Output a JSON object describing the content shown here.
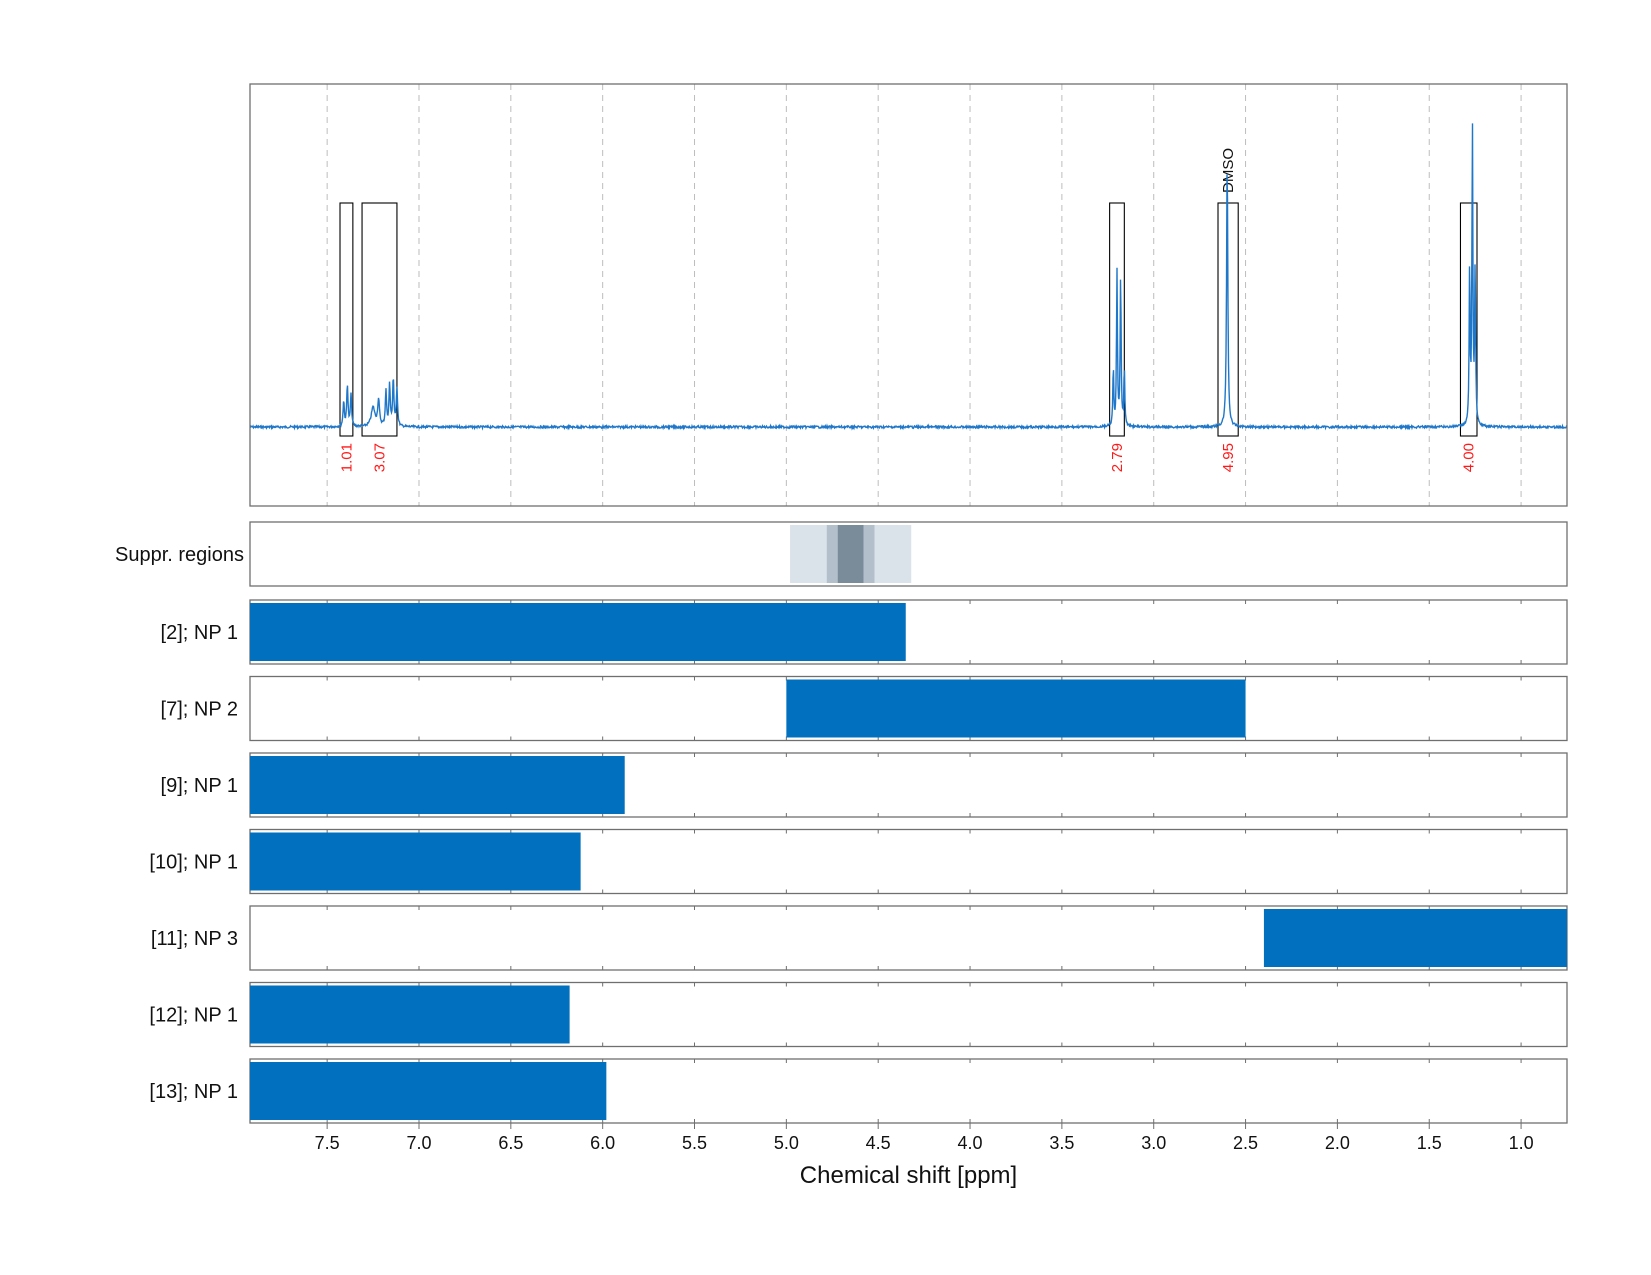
{
  "chart_data": {
    "type": "nmr-spectrum-with-range-bars",
    "xlabel": "Chemical shift [ppm]",
    "xlim": [
      7.92,
      0.75
    ],
    "x_ticks": [
      7.5,
      7.0,
      6.5,
      6.0,
      5.5,
      5.0,
      4.5,
      4.0,
      3.5,
      3.0,
      2.5,
      2.0,
      1.5,
      1.0
    ],
    "x_tick_labels": [
      "7.5",
      "7.0",
      "6.5",
      "6.0",
      "5.5",
      "5.0",
      "4.5",
      "4.0",
      "3.5",
      "3.0",
      "2.5",
      "2.0",
      "1.5",
      "1.0"
    ],
    "grid": true,
    "spectrum": {
      "color": "#1f77c9",
      "peaks": [
        {
          "ppm": 7.41,
          "height": 0.08,
          "width": 0.004
        },
        {
          "ppm": 7.39,
          "height": 0.13,
          "width": 0.004
        },
        {
          "ppm": 7.37,
          "height": 0.1,
          "width": 0.004
        },
        {
          "ppm": 7.25,
          "height": 0.06,
          "width": 0.012
        },
        {
          "ppm": 7.22,
          "height": 0.08,
          "width": 0.006
        },
        {
          "ppm": 7.18,
          "height": 0.11,
          "width": 0.004
        },
        {
          "ppm": 7.16,
          "height": 0.13,
          "width": 0.004
        },
        {
          "ppm": 7.14,
          "height": 0.15,
          "width": 0.004
        },
        {
          "ppm": 7.12,
          "height": 0.12,
          "width": 0.004
        },
        {
          "ppm": 3.22,
          "height": 0.18,
          "width": 0.003
        },
        {
          "ppm": 3.2,
          "height": 0.48,
          "width": 0.003
        },
        {
          "ppm": 3.18,
          "height": 0.48,
          "width": 0.003
        },
        {
          "ppm": 3.16,
          "height": 0.18,
          "width": 0.003
        },
        {
          "ppm": 2.6,
          "height": 0.84,
          "width": 0.004
        },
        {
          "ppm": 1.28,
          "height": 0.5,
          "width": 0.003
        },
        {
          "ppm": 1.265,
          "height": 0.94,
          "width": 0.003
        },
        {
          "ppm": 1.25,
          "height": 0.5,
          "width": 0.003
        }
      ]
    },
    "integration_regions": [
      {
        "from": 7.43,
        "to": 7.36,
        "label": "1.01",
        "peak_label": ""
      },
      {
        "from": 7.31,
        "to": 7.12,
        "label": "3.07",
        "peak_label": ""
      },
      {
        "from": 3.24,
        "to": 3.16,
        "label": "2.79",
        "peak_label": ""
      },
      {
        "from": 2.65,
        "to": 2.54,
        "label": "4.95",
        "peak_label": "DMSO"
      },
      {
        "from": 1.33,
        "to": 1.24,
        "label": "4.00",
        "peak_label": ""
      }
    ],
    "suppression_regions": {
      "label": "Suppr. regions",
      "bands": [
        {
          "from": 4.98,
          "to": 4.32,
          "shade": "#dbe3ea"
        },
        {
          "from": 4.78,
          "to": 4.52,
          "shade": "#b3c0cb"
        },
        {
          "from": 4.72,
          "to": 4.58,
          "shade": "#7a8b99"
        }
      ]
    },
    "bar_color": "#0070bf",
    "rows": [
      {
        "label": "[2]; NP 1",
        "from": 7.92,
        "to": 4.35
      },
      {
        "label": "[7]; NP 2",
        "from": 5.0,
        "to": 2.5
      },
      {
        "label": "[9]; NP 1",
        "from": 7.92,
        "to": 5.88
      },
      {
        "label": "[10]; NP 1",
        "from": 7.92,
        "to": 6.12
      },
      {
        "label": "[11]; NP 3",
        "from": 2.4,
        "to": 0.75
      },
      {
        "label": "[12]; NP 1",
        "from": 7.92,
        "to": 6.18
      },
      {
        "label": "[13]; NP 1",
        "from": 7.92,
        "to": 5.98
      }
    ]
  }
}
